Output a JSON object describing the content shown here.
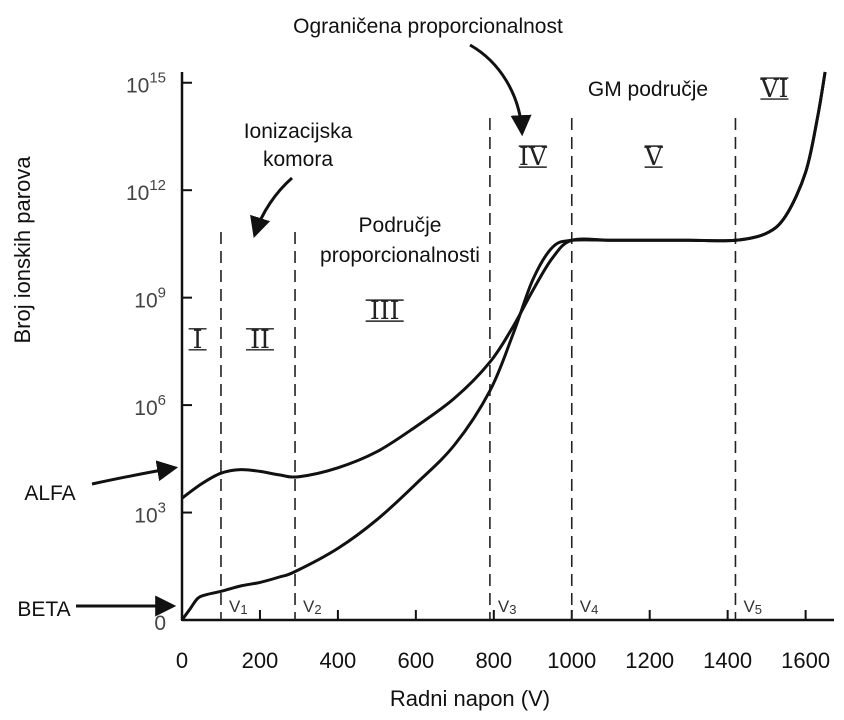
{
  "chart_data": {
    "type": "line",
    "title": "",
    "xlabel": "Radni napon (V)",
    "ylabel": "Broj ionskih parova",
    "xlim": [
      0,
      1660
    ],
    "ylim_log": [
      0,
      15.3
    ],
    "x_ticks": [
      "0",
      "200",
      "400",
      "600",
      "800",
      "1000",
      "1200",
      "1400",
      "1600"
    ],
    "x_tick_values": [
      0,
      200,
      400,
      600,
      800,
      1000,
      1200,
      1400,
      1600
    ],
    "y_ticks": [
      {
        "base": "0",
        "exp": "",
        "value": 0
      },
      {
        "base": "10",
        "exp": "3",
        "value": 3
      },
      {
        "base": "10",
        "exp": "6",
        "value": 6
      },
      {
        "base": "10",
        "exp": "9",
        "value": 9
      },
      {
        "base": "10",
        "exp": "12",
        "value": 12
      },
      {
        "base": "10",
        "exp": "15",
        "value": 15
      }
    ],
    "boundaries": [
      {
        "label": "V1",
        "sub": "1",
        "x": 100
      },
      {
        "label": "V2",
        "sub": "2",
        "x": 290
      },
      {
        "label": "V3",
        "sub": "3",
        "x": 790
      },
      {
        "label": "V4",
        "sub": "4",
        "x": 1000
      },
      {
        "label": "V5",
        "sub": "5",
        "x": 1420
      }
    ],
    "regions": [
      {
        "label": "I",
        "x": 40,
        "logy": 7.6
      },
      {
        "label": "II",
        "x": 200,
        "logy": 7.6
      },
      {
        "label": "III",
        "x": 520,
        "logy": 8.4
      },
      {
        "label": "IV",
        "x": 900,
        "logy": 12.7
      },
      {
        "label": "V",
        "x": 1210,
        "logy": 12.7
      },
      {
        "label": "VI",
        "x": 1520,
        "logy": 14.6
      }
    ],
    "annotations": [
      {
        "text": "Ograničena proporcionalnost"
      },
      {
        "text": "GM područje"
      },
      {
        "text": "Ionizacijska"
      },
      {
        "text": "komora"
      },
      {
        "text": "Područje"
      },
      {
        "text": "proporcionalnosti"
      },
      {
        "text": "ALFA"
      },
      {
        "text": "BETA"
      }
    ],
    "series": [
      {
        "name": "ALFA",
        "x": [
          0,
          50,
          100,
          150,
          200,
          250,
          300,
          400,
          500,
          600,
          700,
          790,
          850,
          900,
          950,
          1000,
          1100,
          1200,
          1300,
          1420,
          1500,
          1550,
          1600,
          1630,
          1650
        ],
        "logy": [
          3.4,
          3.8,
          4.1,
          4.2,
          4.15,
          4.05,
          4.0,
          4.25,
          4.7,
          5.4,
          6.2,
          7.2,
          8.2,
          9.2,
          10.1,
          10.6,
          10.6,
          10.6,
          10.6,
          10.6,
          10.8,
          11.3,
          12.5,
          14.0,
          15.3
        ]
      },
      {
        "name": "BETA",
        "x": [
          0,
          20,
          40,
          60,
          100,
          150,
          200,
          250,
          290,
          400,
          500,
          600,
          700,
          790,
          850,
          900,
          950,
          1000,
          1100,
          1200,
          1300,
          1420,
          1500,
          1550,
          1600,
          1630,
          1650
        ],
        "logy": [
          0,
          0.3,
          0.6,
          0.7,
          0.8,
          0.95,
          1.05,
          1.2,
          1.35,
          2.0,
          2.8,
          3.8,
          4.9,
          6.4,
          8.0,
          9.5,
          10.4,
          10.6,
          10.6,
          10.6,
          10.6,
          10.6,
          10.8,
          11.3,
          12.5,
          14.0,
          15.3
        ]
      }
    ],
    "grid": false
  }
}
